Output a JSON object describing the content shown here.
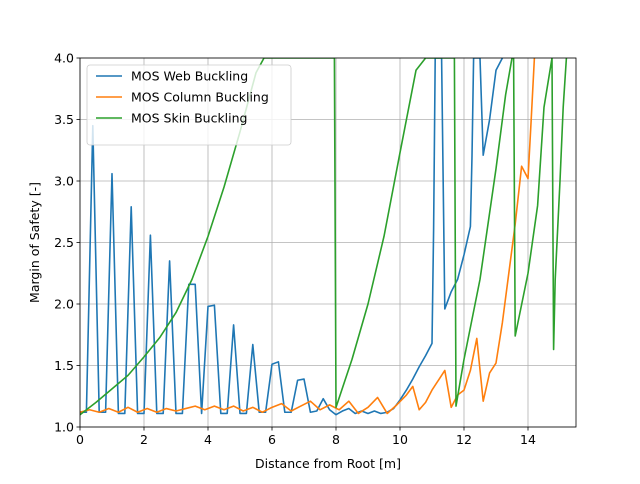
{
  "chart_data": {
    "type": "line",
    "title": "",
    "xlabel": "Distance from Root [m]",
    "ylabel": "Margin of Safety [-]",
    "xlim": [
      0,
      15.5
    ],
    "ylim": [
      1.0,
      4.0
    ],
    "xticks": [
      0,
      2,
      4,
      6,
      8,
      10,
      12,
      14
    ],
    "xtick_labels": [
      "0",
      "2",
      "4",
      "6",
      "8",
      "10",
      "12",
      "14"
    ],
    "yticks": [
      1.0,
      1.5,
      2.0,
      2.5,
      3.0,
      3.5,
      4.0
    ],
    "ytick_labels": [
      "1.0",
      "1.5",
      "2.0",
      "2.5",
      "3.0",
      "3.5",
      "4.0"
    ],
    "grid": true,
    "legend_position": "top-left",
    "series": [
      {
        "name": "MOS Web Buckling",
        "color": "#1f77b4",
        "x": [
          0,
          0.2,
          0.4,
          0.6,
          0.8,
          1.0,
          1.2,
          1.4,
          1.6,
          1.8,
          2.0,
          2.2,
          2.4,
          2.6,
          2.8,
          3.0,
          3.2,
          3.4,
          3.6,
          3.8,
          4.0,
          4.2,
          4.4,
          4.6,
          4.8,
          5.0,
          5.2,
          5.4,
          5.6,
          5.8,
          6.0,
          6.2,
          6.4,
          6.6,
          6.8,
          7.0,
          7.2,
          7.4,
          7.6,
          7.8,
          8.0,
          8.2,
          8.4,
          8.6,
          8.8,
          9.0,
          9.2,
          9.4,
          9.6,
          9.8,
          10.0,
          10.2,
          10.4,
          10.6,
          10.8,
          11.0,
          11.05,
          11.1,
          11.2,
          11.3,
          11.4,
          11.6,
          11.8,
          12.0,
          12.2,
          12.25,
          12.3,
          12.4,
          12.5,
          12.6,
          12.8,
          13.0,
          13.2
        ],
        "y": [
          1.12,
          1.12,
          3.45,
          1.12,
          1.12,
          3.06,
          1.11,
          1.11,
          2.79,
          1.11,
          1.11,
          2.56,
          1.11,
          1.11,
          2.35,
          1.11,
          1.11,
          2.16,
          2.16,
          1.11,
          1.98,
          1.99,
          1.11,
          1.11,
          1.83,
          1.11,
          1.11,
          1.67,
          1.12,
          1.12,
          1.51,
          1.53,
          1.12,
          1.12,
          1.38,
          1.39,
          1.12,
          1.13,
          1.23,
          1.14,
          1.1,
          1.13,
          1.15,
          1.11,
          1.13,
          1.11,
          1.13,
          1.11,
          1.12,
          1.15,
          1.22,
          1.3,
          1.39,
          1.49,
          1.58,
          1.68,
          2.6,
          4.0,
          4.0,
          4.0,
          1.96,
          2.1,
          2.2,
          2.4,
          2.63,
          3.2,
          4.0,
          4.0,
          4.0,
          3.21,
          3.5,
          3.9,
          4.0
        ]
      },
      {
        "name": "MOS Column Buckling",
        "color": "#ff7f0e",
        "x": [
          0,
          0.3,
          0.6,
          0.9,
          1.2,
          1.5,
          1.8,
          2.1,
          2.4,
          2.7,
          3.0,
          3.3,
          3.6,
          3.9,
          4.2,
          4.5,
          4.8,
          5.1,
          5.4,
          5.7,
          6.0,
          6.3,
          6.6,
          6.9,
          7.2,
          7.5,
          7.8,
          8.1,
          8.4,
          8.7,
          9.0,
          9.3,
          9.6,
          9.9,
          10.2,
          10.4,
          10.6,
          10.8,
          11.0,
          11.2,
          11.4,
          11.6,
          11.8,
          12.0,
          12.2,
          12.4,
          12.6,
          12.8,
          13.0,
          13.2,
          13.4,
          13.6,
          13.8,
          14.0,
          14.1,
          14.2
        ],
        "y": [
          1.12,
          1.14,
          1.12,
          1.15,
          1.12,
          1.16,
          1.12,
          1.15,
          1.12,
          1.15,
          1.13,
          1.15,
          1.17,
          1.14,
          1.17,
          1.14,
          1.17,
          1.13,
          1.16,
          1.12,
          1.16,
          1.19,
          1.13,
          1.17,
          1.21,
          1.14,
          1.18,
          1.14,
          1.21,
          1.11,
          1.16,
          1.24,
          1.11,
          1.18,
          1.26,
          1.33,
          1.14,
          1.2,
          1.3,
          1.38,
          1.46,
          1.16,
          1.26,
          1.3,
          1.46,
          1.72,
          1.21,
          1.44,
          1.52,
          1.85,
          2.25,
          2.65,
          3.12,
          3.02,
          3.5,
          4.0
        ]
      },
      {
        "name": "MOS Skin Buckling",
        "color": "#2ca02c",
        "x": [
          0,
          0.5,
          1.0,
          1.5,
          2.0,
          2.5,
          3.0,
          3.5,
          4.0,
          4.5,
          5.0,
          5.5,
          5.75,
          5.95,
          6.0,
          7.9,
          7.95,
          8.0,
          8.5,
          9.0,
          9.5,
          10.0,
          10.5,
          10.8,
          10.85,
          11.6,
          11.7,
          11.75,
          12.0,
          12.5,
          13.0,
          13.3,
          13.5,
          13.55,
          13.6,
          14.0,
          14.3,
          14.5,
          14.75,
          14.8,
          14.85,
          15.0,
          15.1,
          15.2
        ],
        "y": [
          1.1,
          1.2,
          1.31,
          1.42,
          1.57,
          1.73,
          1.93,
          2.2,
          2.55,
          2.95,
          3.4,
          3.88,
          4.0,
          4.0,
          4.0,
          4.0,
          4.0,
          1.16,
          1.55,
          2.0,
          2.55,
          3.23,
          3.9,
          4.0,
          4.0,
          4.0,
          4.0,
          1.17,
          1.55,
          2.2,
          3.1,
          3.7,
          4.0,
          4.0,
          1.74,
          2.25,
          2.8,
          3.6,
          4.0,
          1.63,
          2.2,
          3.0,
          3.6,
          4.0
        ]
      }
    ]
  }
}
